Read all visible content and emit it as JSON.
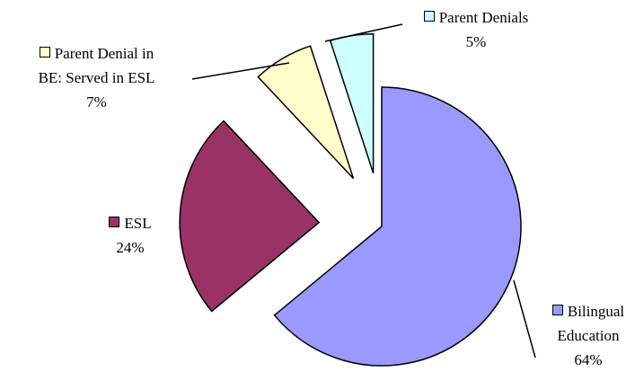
{
  "chart_data": {
    "type": "pie",
    "categories": [
      "Bilingual Education",
      "ESL",
      "Parent Denial in BE: Served in ESL",
      "Parent Denials"
    ],
    "values": [
      64,
      24,
      7,
      5
    ],
    "value_labels": [
      "64%",
      "24%",
      "7%",
      "5%"
    ],
    "colors": [
      "#9999ff",
      "#993366",
      "#ffffcc",
      "#ccffff"
    ]
  }
}
